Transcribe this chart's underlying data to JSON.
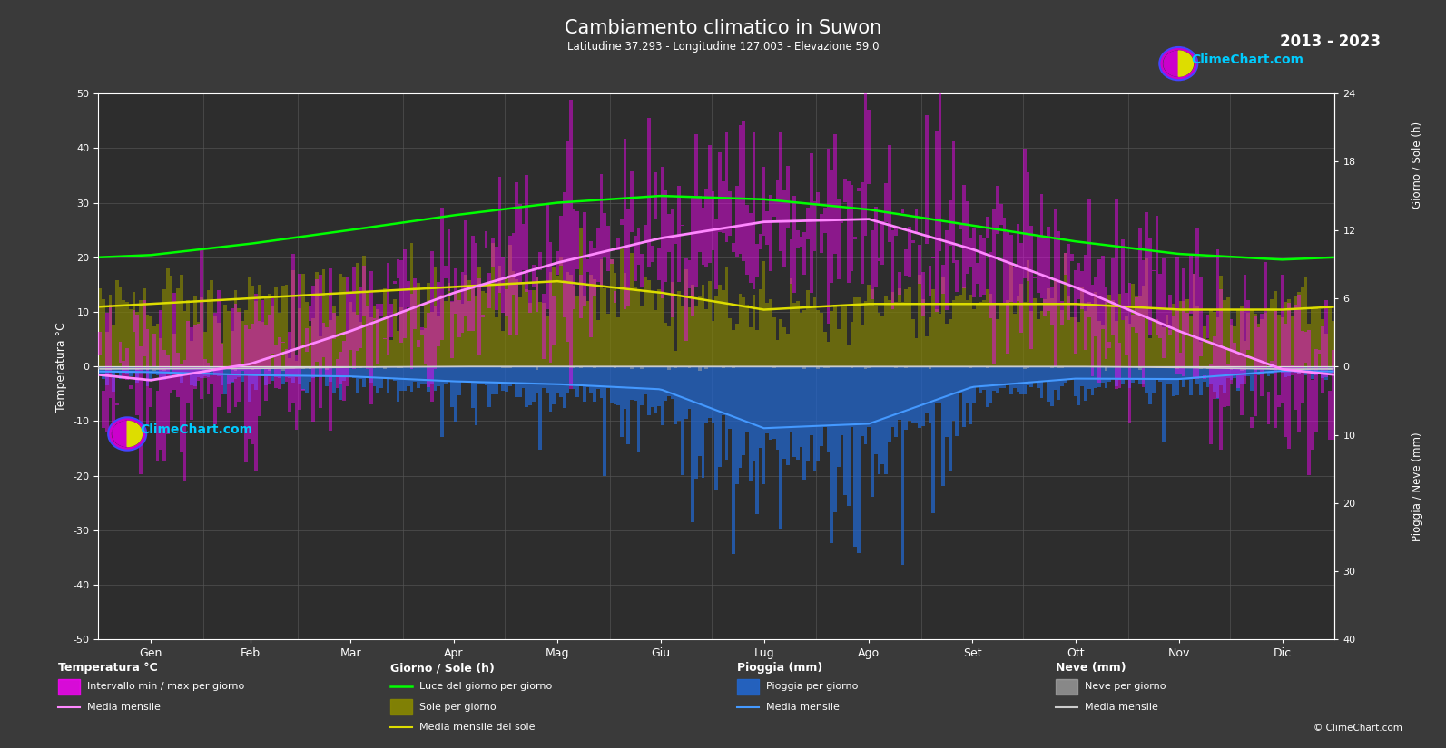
{
  "title": "Cambiamento climatico in Suwon",
  "subtitle": "Latitudine 37.293 - Longitudine 127.003 - Elevazione 59.0",
  "year_range": "2013 - 2023",
  "background_color": "#3a3a3a",
  "plot_bg_color": "#2d2d2d",
  "text_color": "#ffffff",
  "months": [
    "Gen",
    "Feb",
    "Mar",
    "Apr",
    "Mag",
    "Giu",
    "Lug",
    "Ago",
    "Set",
    "Ott",
    "Nov",
    "Dic"
  ],
  "temp_ylim_lo": -50,
  "temp_ylim_hi": 50,
  "sun_axis_hi": 24,
  "rain_axis_lo": 40,
  "temp_mean_monthly": [
    -2.5,
    0.5,
    6.5,
    13.5,
    19.0,
    23.5,
    26.5,
    27.0,
    21.5,
    14.5,
    6.5,
    -0.5
  ],
  "temp_max_monthly": [
    3.0,
    6.0,
    12.5,
    19.5,
    25.0,
    29.0,
    31.5,
    32.0,
    26.5,
    20.0,
    12.0,
    5.0
  ],
  "temp_min_monthly": [
    -8.0,
    -5.5,
    0.5,
    7.5,
    13.0,
    18.0,
    22.0,
    22.5,
    16.5,
    9.0,
    1.5,
    -5.5
  ],
  "rain_monthly_mm": [
    25,
    35,
    45,
    65,
    80,
    100,
    280,
    260,
    90,
    55,
    55,
    20
  ],
  "snow_monthly_mm": [
    10,
    8,
    3,
    0,
    0,
    0,
    0,
    0,
    0,
    0,
    4,
    12
  ],
  "daylight_monthly_h": [
    9.8,
    10.8,
    12.0,
    13.3,
    14.4,
    15.0,
    14.7,
    13.8,
    12.4,
    11.0,
    9.9,
    9.4
  ],
  "sunshine_monthly_h": [
    5.5,
    6.0,
    6.5,
    7.0,
    7.5,
    6.5,
    5.0,
    5.5,
    5.5,
    5.5,
    5.0,
    5.0
  ],
  "temp_bar_color": "#ff00ff",
  "temp_mean_color": "#ff88ff",
  "daylight_color": "#00ff00",
  "sunshine_bar_color": "#888800",
  "sunshine_mean_color": "#dddd00",
  "rain_bar_color": "#2266cc",
  "snow_bar_color": "#aaaaaa",
  "rain_mean_color": "#4499ff",
  "snow_mean_color": "#cccccc",
  "logo_color_cyan": "#00ccff",
  "grid_color": "#555555",
  "zero_line_color": "#dddddd",
  "days_per_month": [
    31,
    28,
    31,
    30,
    31,
    30,
    31,
    31,
    30,
    31,
    30,
    31
  ],
  "sun_scale": 2.08333,
  "rain_scale": 1.25
}
